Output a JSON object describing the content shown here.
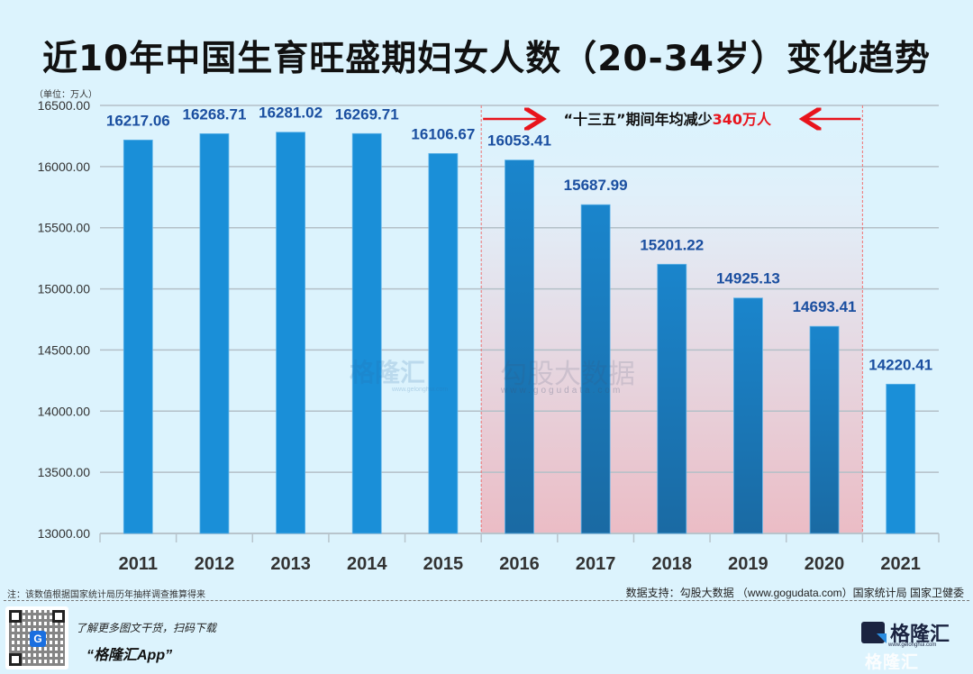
{
  "title": "近10年中国生育旺盛期妇女人数（20-34岁）变化趋势",
  "unit_label": "（单位：万人）",
  "annotation": {
    "text_prefix": "“十三五”期间年均减少",
    "text_highlight": "340万人",
    "range": [
      "2016",
      "2020"
    ]
  },
  "footer": {
    "note": "注：该数值根据国家统计局历年抽样调查推算得来",
    "source": "数据支持：勾股大数据 （www.gogudata.com）国家统计局 国家卫健委",
    "promo_line1": "了解更多图文干货，扫码下载",
    "promo_line2": "“格隆汇App”",
    "brand_name": "格隆汇",
    "brand_url": "www.gelonghui.com"
  },
  "watermarks": {
    "wm1": "格隆汇",
    "wm1_url": "www.gelonghui.com",
    "wm2": "勾股大数据",
    "wm2_url": "www.gogudata.com"
  },
  "colors": {
    "bar": "#1a8fd8",
    "bar_highlight_top": "#1a85cc",
    "bar_highlight_bottom": "#1a6aa3",
    "label": "#1b4fa0",
    "annotation_red": "#e8141c",
    "background": "#dcf3fd"
  },
  "chart_data": {
    "type": "bar",
    "title": "近10年中国生育旺盛期妇女人数（20-34岁）变化趋势",
    "xlabel": "",
    "ylabel": "（单位：万人）",
    "categories": [
      "2011",
      "2012",
      "2013",
      "2014",
      "2015",
      "2016",
      "2017",
      "2018",
      "2019",
      "2020",
      "2021"
    ],
    "values": [
      16217.06,
      16268.71,
      16281.02,
      16269.71,
      16106.67,
      16053.41,
      15687.99,
      15201.22,
      14925.13,
      14693.41,
      14220.41
    ],
    "value_labels": [
      "16217.06",
      "16268.71",
      "16281.02",
      "16269.71",
      "16106.67",
      "16053.41",
      "15687.99",
      "15201.22",
      "14925.13",
      "14693.41",
      "14220.41"
    ],
    "ylim": [
      13000,
      16500
    ],
    "yticks": [
      13000,
      13500,
      14000,
      14500,
      15000,
      15500,
      16000,
      16500
    ],
    "ytick_labels": [
      "13000.00",
      "13500.00",
      "14000.00",
      "14500.00",
      "15000.00",
      "15500.00",
      "16000.00",
      "16500.00"
    ],
    "grid": true,
    "legend": "none",
    "highlight_range": [
      "2016",
      "2020"
    ]
  }
}
